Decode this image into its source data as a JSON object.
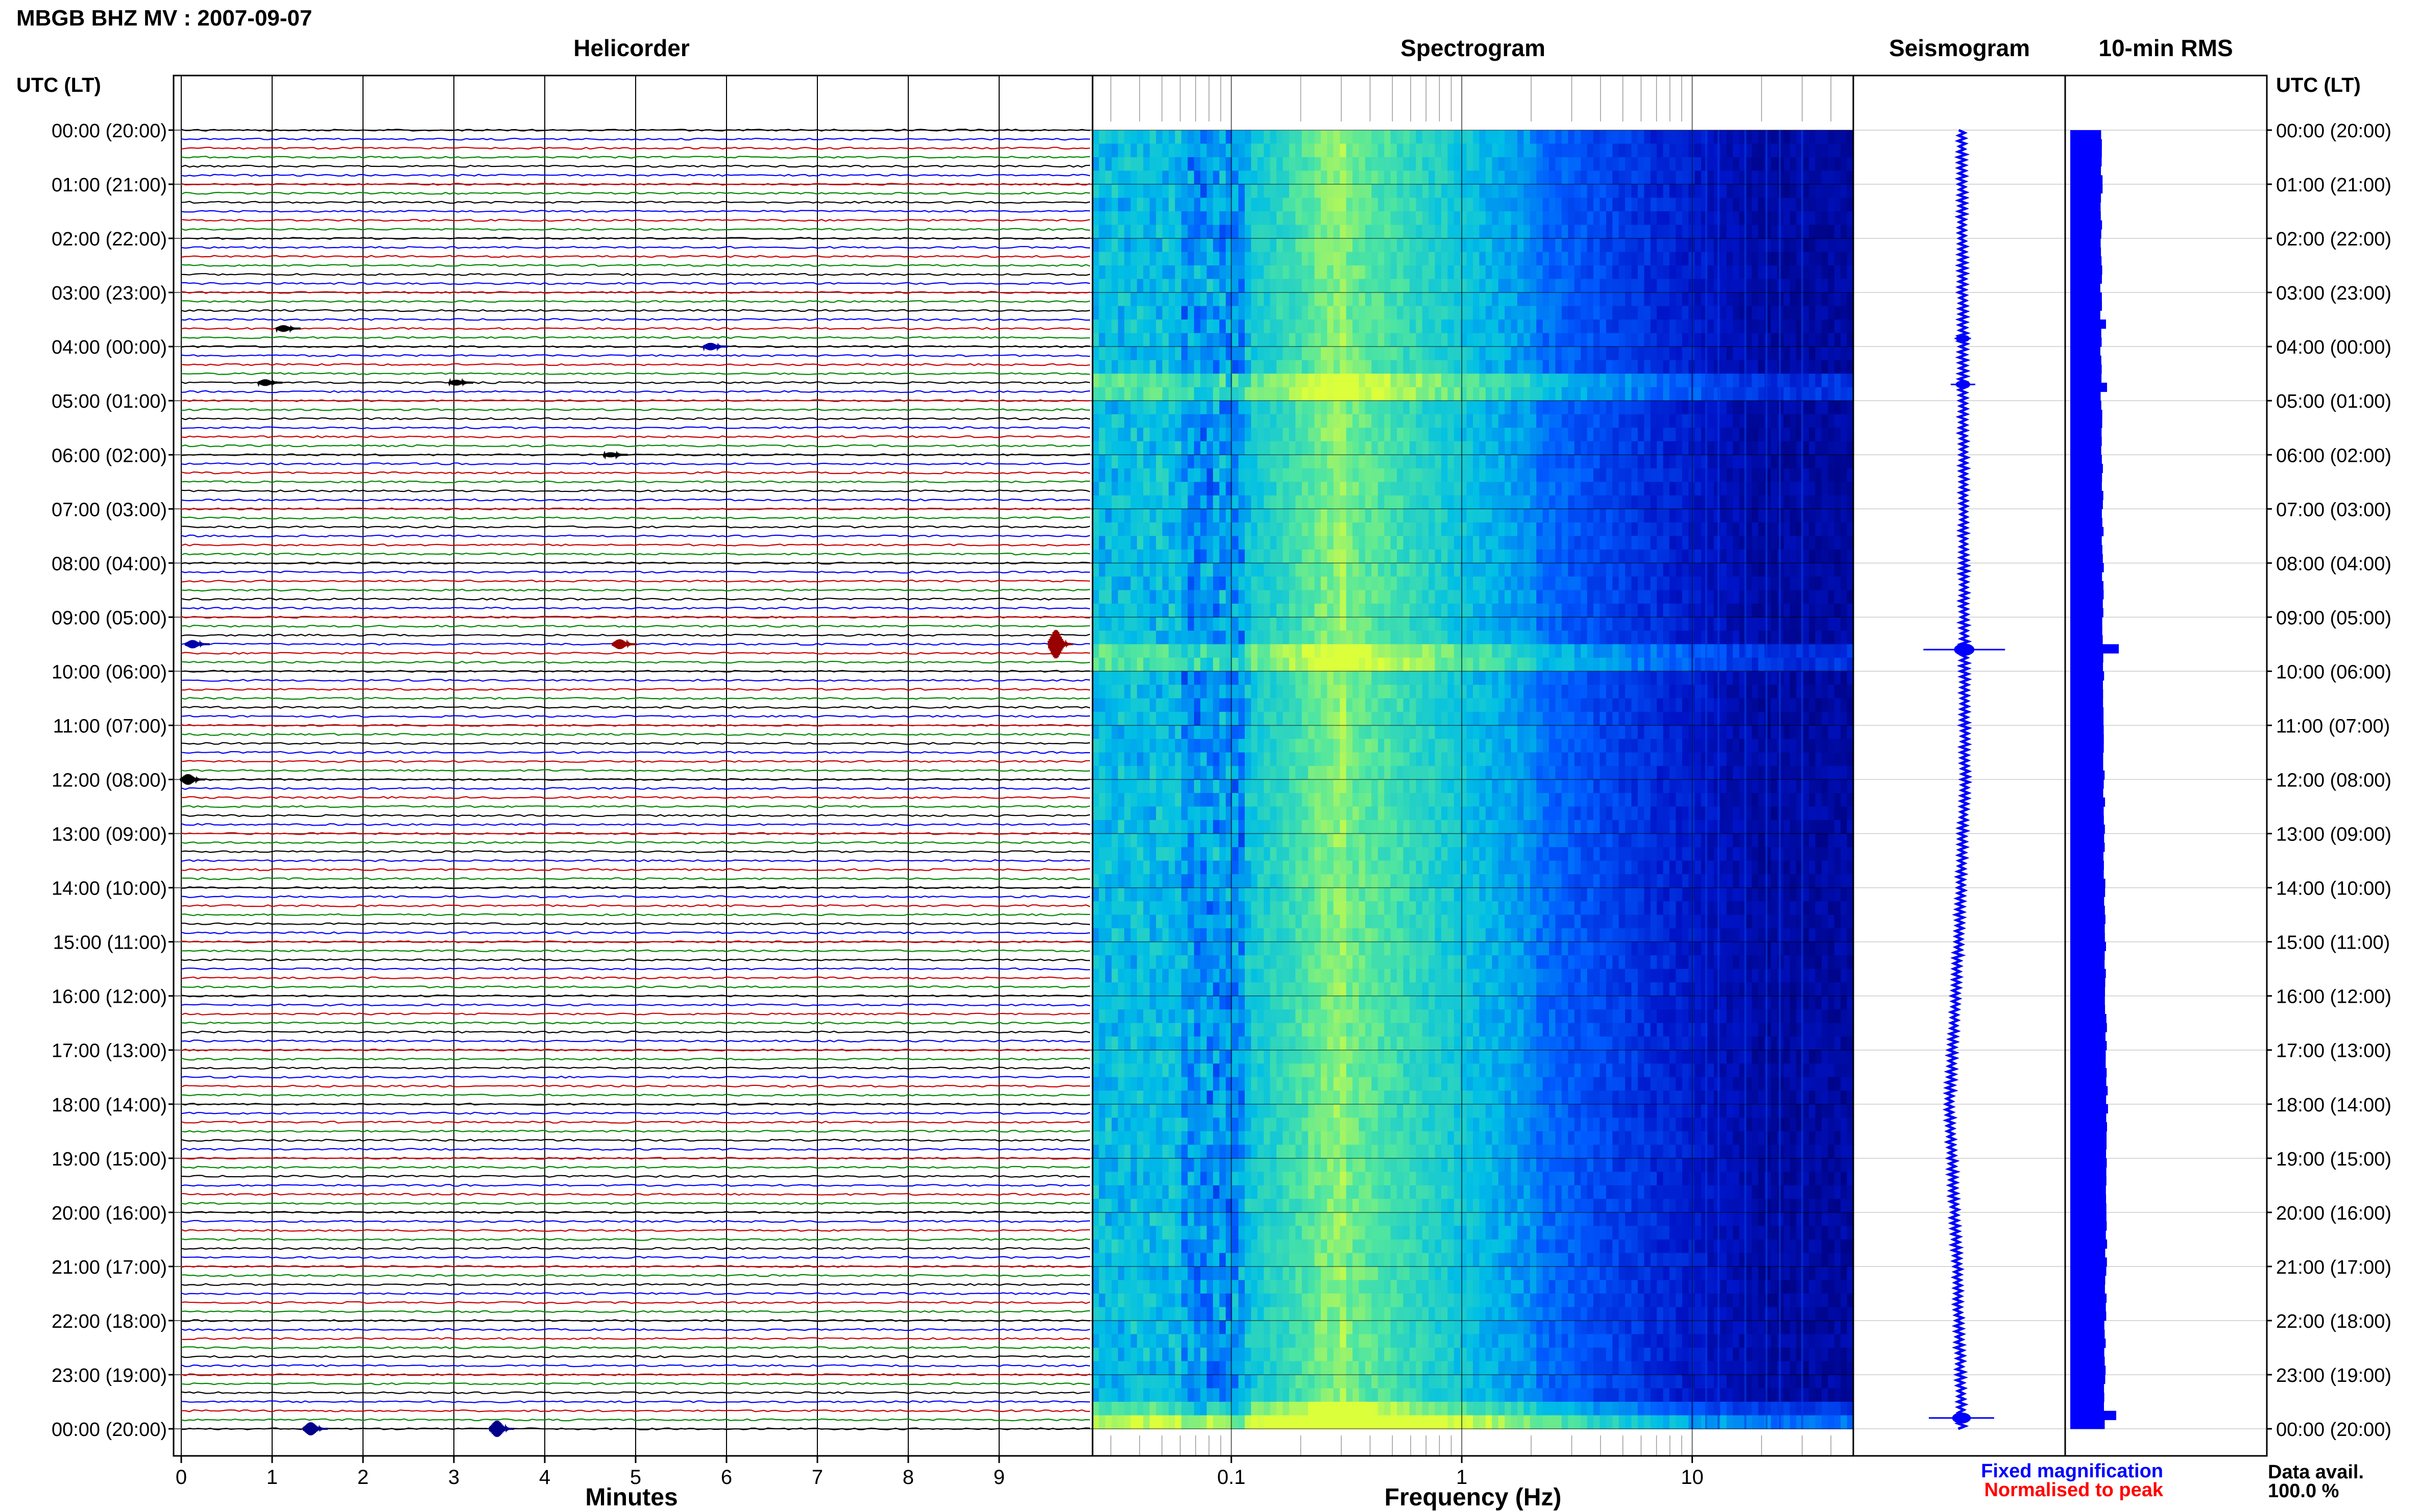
{
  "header": {
    "title": "MBGB BHZ MV : 2007-09-07"
  },
  "chart_data": [
    {
      "type": "line",
      "panel": "helicorder",
      "title": "Helicorder",
      "xlabel": "Minutes",
      "xlim": [
        0,
        10
      ],
      "x_ticks": [
        "0",
        "1",
        "2",
        "3",
        "4",
        "5",
        "6",
        "7",
        "8",
        "9"
      ],
      "ylabel": "UTC (LT)",
      "y_tick_labels": [
        "00:00 (20:00)",
        "01:00 (21:00)",
        "02:00 (22:00)",
        "03:00 (23:00)",
        "04:00 (00:00)",
        "05:00 (01:00)",
        "06:00 (02:00)",
        "07:00 (03:00)",
        "08:00 (04:00)",
        "09:00 (05:00)",
        "10:00 (06:00)",
        "11:00 (07:00)",
        "12:00 (08:00)",
        "13:00 (09:00)",
        "14:00 (10:00)",
        "15:00 (11:00)",
        "16:00 (12:00)",
        "17:00 (13:00)",
        "18:00 (14:00)",
        "19:00 (15:00)",
        "20:00 (16:00)",
        "21:00 (17:00)",
        "22:00 (18:00)",
        "23:00 (19:00)",
        "00:00 (20:00)"
      ],
      "trace_colors": [
        "#000000",
        "#0000ff",
        "#cc0000",
        "#008800"
      ],
      "traces_per_hour": 6,
      "events": [
        {
          "line": 57,
          "minute": 9.6,
          "amplitude": 3.5,
          "color": "#990000"
        },
        {
          "line": 57,
          "minute": 4.8,
          "amplitude": 1.2,
          "color": "#990000"
        },
        {
          "line": 57,
          "minute": 0.1,
          "amplitude": 1.0,
          "color": "#0000aa"
        },
        {
          "line": 144,
          "minute": 1.4,
          "amplitude": 1.6,
          "color": "#000088"
        },
        {
          "line": 144,
          "minute": 3.45,
          "amplitude": 2.0,
          "color": "#000088"
        },
        {
          "line": 72,
          "minute": 0.05,
          "amplitude": 1.3,
          "color": "#000000"
        },
        {
          "line": 22,
          "minute": 1.1,
          "amplitude": 0.8,
          "color": "#000000"
        },
        {
          "line": 28,
          "minute": 0.9,
          "amplitude": 0.8,
          "color": "#000000"
        },
        {
          "line": 28,
          "minute": 3.0,
          "amplitude": 0.7,
          "color": "#000000"
        },
        {
          "line": 24,
          "minute": 5.8,
          "amplitude": 0.9,
          "color": "#0000aa"
        },
        {
          "line": 36,
          "minute": 4.7,
          "amplitude": 0.6,
          "color": "#000000"
        }
      ]
    },
    {
      "type": "heatmap",
      "panel": "spectrogram",
      "title": "Spectrogram",
      "xlabel": "Frequency (Hz)",
      "x_scale": "log",
      "xlim": [
        0.025,
        50
      ],
      "x_tick_labels": [
        "0.1",
        "1",
        "10"
      ],
      "x_ticks": [
        0.1,
        1,
        10
      ],
      "ylim_hours": [
        0,
        24
      ],
      "event_rows_hours": [
        9.6,
        23.8,
        4.7,
        23.6
      ]
    },
    {
      "type": "line",
      "panel": "seismogram",
      "title": "Seismogram",
      "trace_color": "#0000ff",
      "ylim_hours": [
        0,
        24
      ],
      "drift_profile": [
        [
          0,
          0.0
        ],
        [
          6,
          0.05
        ],
        [
          12,
          0.1
        ],
        [
          15,
          -0.1
        ],
        [
          18,
          -0.4
        ],
        [
          21,
          -0.15
        ],
        [
          24,
          0.0
        ]
      ],
      "events": [
        {
          "hour": 9.6,
          "amplitude": 1.0
        },
        {
          "hour": 23.8,
          "amplitude": 0.8
        },
        {
          "hour": 4.7,
          "amplitude": 0.3
        },
        {
          "hour": 3.85,
          "amplitude": 0.2
        }
      ]
    },
    {
      "type": "bar",
      "panel": "rms",
      "title": "10-min RMS",
      "bar_color": "#0000ff",
      "bins_per_hour": 6,
      "base_profile": [
        [
          0,
          0.62
        ],
        [
          4,
          0.6
        ],
        [
          8,
          0.64
        ],
        [
          12,
          0.66
        ],
        [
          15,
          0.68
        ],
        [
          18,
          0.72
        ],
        [
          21,
          0.7
        ],
        [
          24,
          0.66
        ]
      ],
      "spikes": [
        {
          "hour": 9.6,
          "value": 0.95
        },
        {
          "hour": 23.8,
          "value": 0.9
        },
        {
          "hour": 3.6,
          "value": 0.7
        },
        {
          "hour": 4.7,
          "value": 0.72
        }
      ]
    }
  ],
  "right_axis": {
    "label": "UTC (LT)"
  },
  "legend": {
    "fixed": "Fixed magnification",
    "fixed_color": "#0000ff",
    "normalised": "Normalised to peak",
    "normalised_color": "#ff0000"
  },
  "data_avail": {
    "label": "Data avail.",
    "value": "100.0 %"
  }
}
